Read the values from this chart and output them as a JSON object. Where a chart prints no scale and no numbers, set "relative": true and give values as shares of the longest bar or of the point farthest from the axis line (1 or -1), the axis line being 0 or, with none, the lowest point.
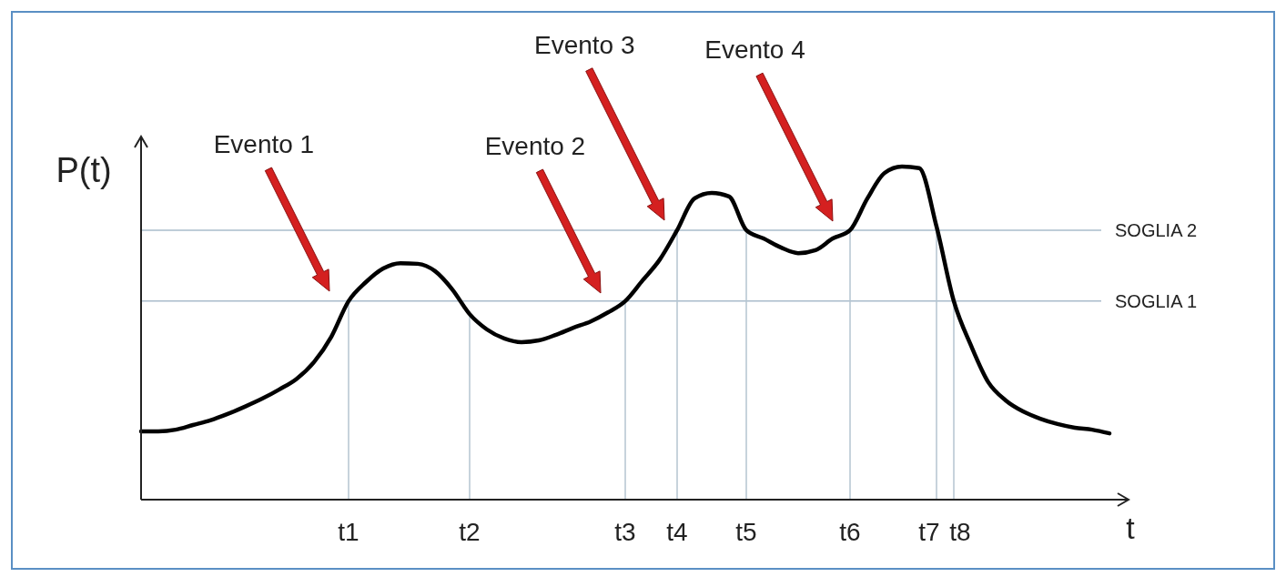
{
  "chart_data": {
    "type": "line",
    "relative": true,
    "xlabel": "t",
    "ylabel": "P(t)",
    "categories": [
      null,
      null,
      null,
      null,
      null,
      null,
      null,
      null,
      null,
      null,
      null,
      null,
      "t1",
      null,
      null,
      null,
      null,
      null,
      null,
      "t2",
      null,
      null,
      null,
      null,
      null,
      null,
      null,
      null,
      "t3",
      null,
      null,
      "t4",
      null,
      null,
      null,
      "t5",
      null,
      null,
      null,
      null,
      null,
      "t6",
      null,
      null,
      null,
      null,
      "t7",
      "t8",
      null,
      null,
      null,
      null,
      null,
      null,
      null,
      null,
      null
    ],
    "series": [
      {
        "color": "#000000",
        "values": [
          0.205,
          0.205,
          0.21,
          0.224,
          0.238,
          0.257,
          0.279,
          0.303,
          0.331,
          0.363,
          0.413,
          0.489,
          0.596,
          0.653,
          0.694,
          0.71,
          0.708,
          0.686,
          0.631,
          0.557,
          0.511,
          0.484,
          0.473,
          0.478,
          0.495,
          0.516,
          0.535,
          0.562,
          0.596,
          0.658,
          0.721,
          0.809,
          0.904,
          0.921,
          0.91,
          0.809,
          0.784,
          0.757,
          0.74,
          0.749,
          0.784,
          0.809,
          0.904,
          0.981,
          1.0,
          0.995,
          0.82,
          0.596,
          0.462,
          0.352,
          0.298,
          0.265,
          0.243,
          0.227,
          0.216,
          0.21,
          0.199
        ]
      }
    ],
    "ref_lines": [
      {
        "axis": "y",
        "value": 0.596,
        "label": "SOGLIA 1",
        "color": "#a9bccb"
      },
      {
        "axis": "y",
        "value": 0.809,
        "label": "SOGLIA 2",
        "color": "#a9bccb"
      }
    ],
    "grid": "x",
    "annotations": [
      "Evento 1",
      "Evento 2",
      "Evento 3",
      "Evento 4"
    ]
  }
}
